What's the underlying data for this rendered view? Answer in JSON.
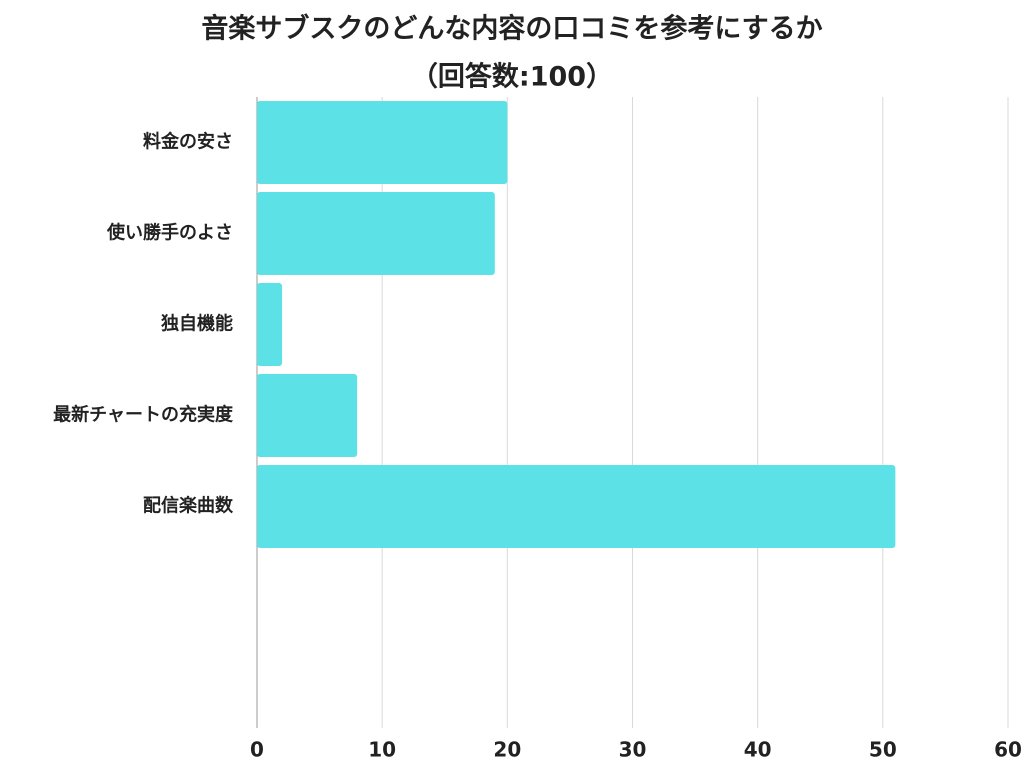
{
  "chart_data": {
    "type": "bar",
    "orientation": "horizontal",
    "title": "音楽サブスクのどんな内容の口コミを参考にするか",
    "subtitle": "（回答数:100）",
    "categories": [
      "料金の安さ",
      "使い勝手のよさ",
      "独自機能",
      "最新チャートの充実度",
      "配信楽曲数"
    ],
    "values": [
      20,
      19,
      2,
      8,
      51
    ],
    "color": "#5ce1e6",
    "xlim": [
      0,
      60
    ],
    "xticks": [
      0,
      10,
      20,
      30,
      40,
      50,
      60
    ],
    "grid": true
  }
}
